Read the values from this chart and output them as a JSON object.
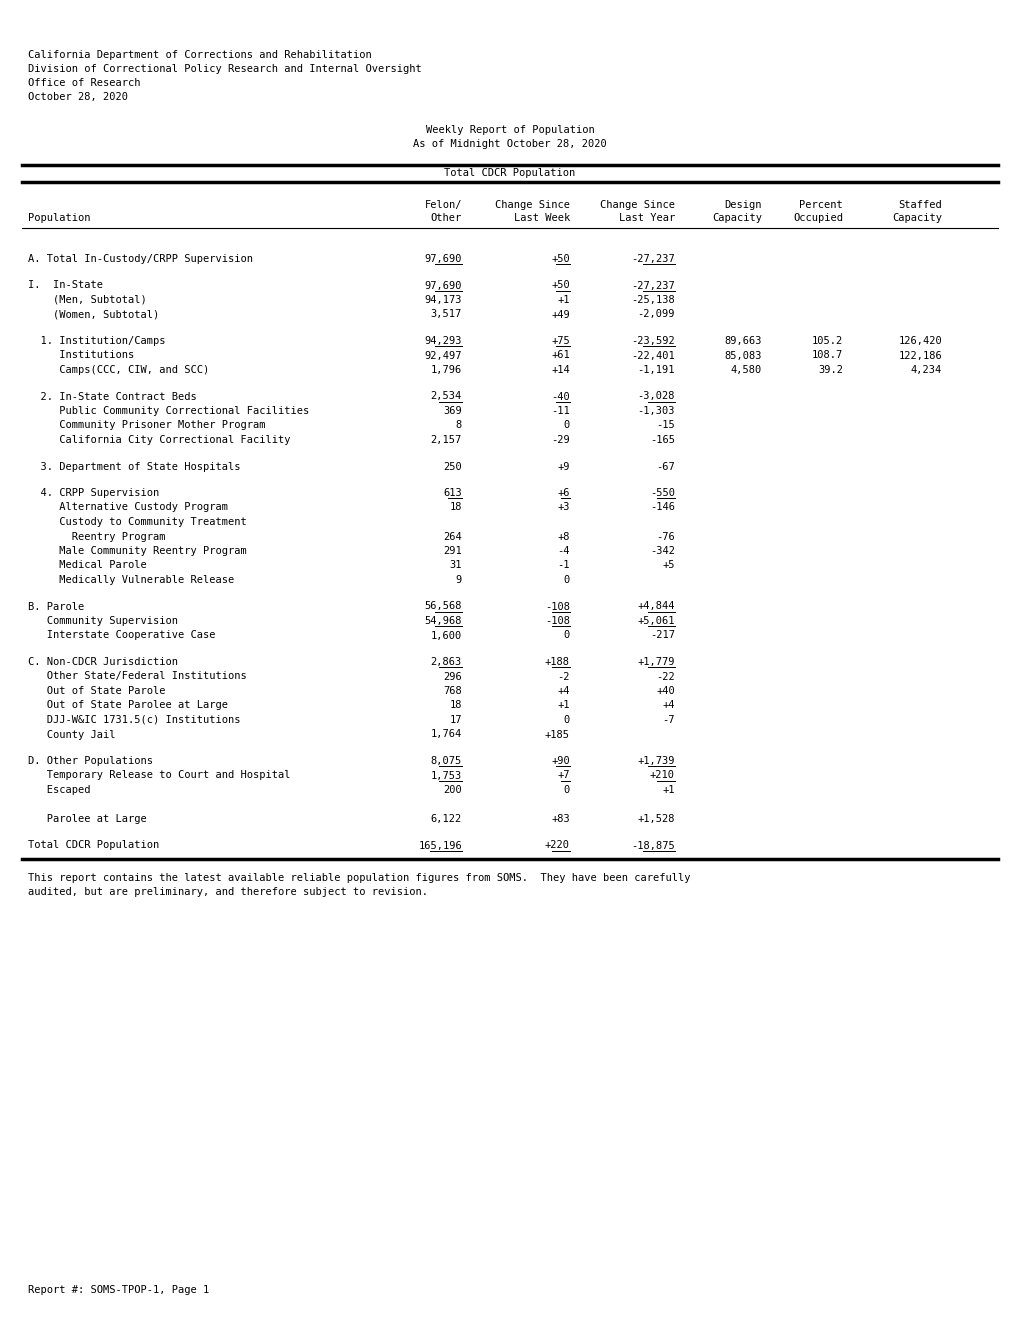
{
  "header_lines": [
    "California Department of Corrections and Rehabilitation",
    "Division of Correctional Policy Research and Internal Oversight",
    "Office of Research",
    "October 28, 2020"
  ],
  "center_title1": "Weekly Report of Population",
  "center_title2": "As of Midnight October 28, 2020",
  "table_title": "Total CDCR Population",
  "rows": [
    {
      "label": "A. Total In-Custody/CRPP Supervision",
      "felon": "97,690",
      "chg_week": "+50",
      "chg_year": "-27,237",
      "design": "",
      "pct": "",
      "staffed": "",
      "ul_felon": true,
      "ul_week": true,
      "ul_year": true,
      "space_before": "normal"
    },
    {
      "label": "I.  In-State",
      "felon": "97,690",
      "chg_week": "+50",
      "chg_year": "-27,237",
      "design": "",
      "pct": "",
      "staffed": "",
      "ul_felon": true,
      "ul_week": true,
      "ul_year": true,
      "space_before": "normal"
    },
    {
      "label": "    (Men, Subtotal)",
      "felon": "94,173",
      "chg_week": "+1",
      "chg_year": "-25,138",
      "design": "",
      "pct": "",
      "staffed": "",
      "ul_felon": false,
      "ul_week": false,
      "ul_year": false,
      "space_before": "none"
    },
    {
      "label": "    (Women, Subtotal)",
      "felon": "3,517",
      "chg_week": "+49",
      "chg_year": "-2,099",
      "design": "",
      "pct": "",
      "staffed": "",
      "ul_felon": false,
      "ul_week": false,
      "ul_year": false,
      "space_before": "none"
    },
    {
      "label": "  1. Institution/Camps",
      "felon": "94,293",
      "chg_week": "+75",
      "chg_year": "-23,592",
      "design": "89,663",
      "pct": "105.2",
      "staffed": "126,420",
      "ul_felon": true,
      "ul_week": true,
      "ul_year": true,
      "space_before": "normal"
    },
    {
      "label": "     Institutions",
      "felon": "92,497",
      "chg_week": "+61",
      "chg_year": "-22,401",
      "design": "85,083",
      "pct": "108.7",
      "staffed": "122,186",
      "ul_felon": false,
      "ul_week": false,
      "ul_year": false,
      "space_before": "none"
    },
    {
      "label": "     Camps(CCC, CIW, and SCC)",
      "felon": "1,796",
      "chg_week": "+14",
      "chg_year": "-1,191",
      "design": "4,580",
      "pct": "39.2",
      "staffed": "4,234",
      "ul_felon": false,
      "ul_week": false,
      "ul_year": false,
      "space_before": "none"
    },
    {
      "label": "  2. In-State Contract Beds",
      "felon": "2,534",
      "chg_week": "-40",
      "chg_year": "-3,028",
      "design": "",
      "pct": "",
      "staffed": "",
      "ul_felon": true,
      "ul_week": true,
      "ul_year": true,
      "space_before": "normal"
    },
    {
      "label": "     Public Community Correctional Facilities",
      "felon": "369",
      "chg_week": "-11",
      "chg_year": "-1,303",
      "design": "",
      "pct": "",
      "staffed": "",
      "ul_felon": false,
      "ul_week": false,
      "ul_year": false,
      "space_before": "none"
    },
    {
      "label": "     Community Prisoner Mother Program",
      "felon": "8",
      "chg_week": "0",
      "chg_year": "-15",
      "design": "",
      "pct": "",
      "staffed": "",
      "ul_felon": false,
      "ul_week": false,
      "ul_year": false,
      "space_before": "none"
    },
    {
      "label": "     California City Correctional Facility",
      "felon": "2,157",
      "chg_week": "-29",
      "chg_year": "-165",
      "design": "",
      "pct": "",
      "staffed": "",
      "ul_felon": false,
      "ul_week": false,
      "ul_year": false,
      "space_before": "none"
    },
    {
      "label": "  3. Department of State Hospitals",
      "felon": "250",
      "chg_week": "+9",
      "chg_year": "-67",
      "design": "",
      "pct": "",
      "staffed": "",
      "ul_felon": false,
      "ul_week": false,
      "ul_year": false,
      "space_before": "normal"
    },
    {
      "label": "  4. CRPP Supervision",
      "felon": "613",
      "chg_week": "+6",
      "chg_year": "-550",
      "design": "",
      "pct": "",
      "staffed": "",
      "ul_felon": true,
      "ul_week": true,
      "ul_year": true,
      "space_before": "normal"
    },
    {
      "label": "     Alternative Custody Program",
      "felon": "18",
      "chg_week": "+3",
      "chg_year": "-146",
      "design": "",
      "pct": "",
      "staffed": "",
      "ul_felon": false,
      "ul_week": false,
      "ul_year": false,
      "space_before": "none"
    },
    {
      "label": "     Custody to Community Treatment",
      "felon": "",
      "chg_week": "",
      "chg_year": "",
      "design": "",
      "pct": "",
      "staffed": "",
      "ul_felon": false,
      "ul_week": false,
      "ul_year": false,
      "space_before": "none"
    },
    {
      "label": "       Reentry Program",
      "felon": "264",
      "chg_week": "+8",
      "chg_year": "-76",
      "design": "",
      "pct": "",
      "staffed": "",
      "ul_felon": false,
      "ul_week": false,
      "ul_year": false,
      "space_before": "none"
    },
    {
      "label": "     Male Community Reentry Program",
      "felon": "291",
      "chg_week": "-4",
      "chg_year": "-342",
      "design": "",
      "pct": "",
      "staffed": "",
      "ul_felon": false,
      "ul_week": false,
      "ul_year": false,
      "space_before": "none"
    },
    {
      "label": "     Medical Parole",
      "felon": "31",
      "chg_week": "-1",
      "chg_year": "+5",
      "design": "",
      "pct": "",
      "staffed": "",
      "ul_felon": false,
      "ul_week": false,
      "ul_year": false,
      "space_before": "none"
    },
    {
      "label": "     Medically Vulnerable Release",
      "felon": "9",
      "chg_week": "0",
      "chg_year": "",
      "design": "",
      "pct": "",
      "staffed": "",
      "ul_felon": false,
      "ul_week": false,
      "ul_year": false,
      "space_before": "none"
    },
    {
      "label": "B. Parole",
      "felon": "56,568",
      "chg_week": "-108",
      "chg_year": "+4,844",
      "design": "",
      "pct": "",
      "staffed": "",
      "ul_felon": true,
      "ul_week": true,
      "ul_year": true,
      "space_before": "normal"
    },
    {
      "label": "   Community Supervision",
      "felon": "54,968",
      "chg_week": "-108",
      "chg_year": "+5,061",
      "design": "",
      "pct": "",
      "staffed": "",
      "ul_felon": true,
      "ul_week": true,
      "ul_year": true,
      "space_before": "none"
    },
    {
      "label": "   Interstate Cooperative Case",
      "felon": "1,600",
      "chg_week": "0",
      "chg_year": "-217",
      "design": "",
      "pct": "",
      "staffed": "",
      "ul_felon": false,
      "ul_week": false,
      "ul_year": false,
      "space_before": "none"
    },
    {
      "label": "C. Non-CDCR Jurisdiction",
      "felon": "2,863",
      "chg_week": "+188",
      "chg_year": "+1,779",
      "design": "",
      "pct": "",
      "staffed": "",
      "ul_felon": true,
      "ul_week": true,
      "ul_year": true,
      "space_before": "normal"
    },
    {
      "label": "   Other State/Federal Institutions",
      "felon": "296",
      "chg_week": "-2",
      "chg_year": "-22",
      "design": "",
      "pct": "",
      "staffed": "",
      "ul_felon": false,
      "ul_week": false,
      "ul_year": false,
      "space_before": "none"
    },
    {
      "label": "   Out of State Parole",
      "felon": "768",
      "chg_week": "+4",
      "chg_year": "+40",
      "design": "",
      "pct": "",
      "staffed": "",
      "ul_felon": false,
      "ul_week": false,
      "ul_year": false,
      "space_before": "none"
    },
    {
      "label": "   Out of State Parolee at Large",
      "felon": "18",
      "chg_week": "+1",
      "chg_year": "+4",
      "design": "",
      "pct": "",
      "staffed": "",
      "ul_felon": false,
      "ul_week": false,
      "ul_year": false,
      "space_before": "none"
    },
    {
      "label": "   DJJ-W&IC 1731.5(c) Institutions",
      "felon": "17",
      "chg_week": "0",
      "chg_year": "-7",
      "design": "",
      "pct": "",
      "staffed": "",
      "ul_felon": false,
      "ul_week": false,
      "ul_year": false,
      "space_before": "none"
    },
    {
      "label": "   County Jail",
      "felon": "1,764",
      "chg_week": "+185",
      "chg_year": "",
      "design": "",
      "pct": "",
      "staffed": "",
      "ul_felon": false,
      "ul_week": false,
      "ul_year": false,
      "space_before": "none"
    },
    {
      "label": "D. Other Populations",
      "felon": "8,075",
      "chg_week": "+90",
      "chg_year": "+1,739",
      "design": "",
      "pct": "",
      "staffed": "",
      "ul_felon": true,
      "ul_week": true,
      "ul_year": true,
      "space_before": "normal"
    },
    {
      "label": "   Temporary Release to Court and Hospital",
      "felon": "1,753",
      "chg_week": "+7",
      "chg_year": "+210",
      "design": "",
      "pct": "",
      "staffed": "",
      "ul_felon": true,
      "ul_week": true,
      "ul_year": true,
      "space_before": "none"
    },
    {
      "label": "   Escaped",
      "felon": "200",
      "chg_week": "0",
      "chg_year": "+1",
      "design": "",
      "pct": "",
      "staffed": "",
      "ul_felon": false,
      "ul_week": false,
      "ul_year": false,
      "space_before": "none"
    },
    {
      "label": "",
      "felon": "",
      "chg_week": "",
      "chg_year": "",
      "design": "",
      "pct": "",
      "staffed": "",
      "ul_felon": false,
      "ul_week": false,
      "ul_year": false,
      "space_before": "none"
    },
    {
      "label": "   Parolee at Large",
      "felon": "6,122",
      "chg_week": "+83",
      "chg_year": "+1,528",
      "design": "",
      "pct": "",
      "staffed": "",
      "ul_felon": false,
      "ul_week": false,
      "ul_year": false,
      "space_before": "none"
    },
    {
      "label": "Total CDCR Population",
      "felon": "165,196",
      "chg_week": "+220",
      "chg_year": "-18,875",
      "design": "",
      "pct": "",
      "staffed": "",
      "ul_felon": true,
      "ul_week": true,
      "ul_year": true,
      "space_before": "normal"
    }
  ],
  "footnote": "This report contains the latest available reliable population figures from SOMS.  They have been carefully\naudited, but are preliminary, and therefore subject to revision.",
  "report_number": "Report #: SOMS-TPOP-1, Page 1",
  "bg_color": "#ffffff",
  "text_color": "#000000",
  "font_size": 7.5,
  "mono_font": "DejaVu Sans Mono"
}
